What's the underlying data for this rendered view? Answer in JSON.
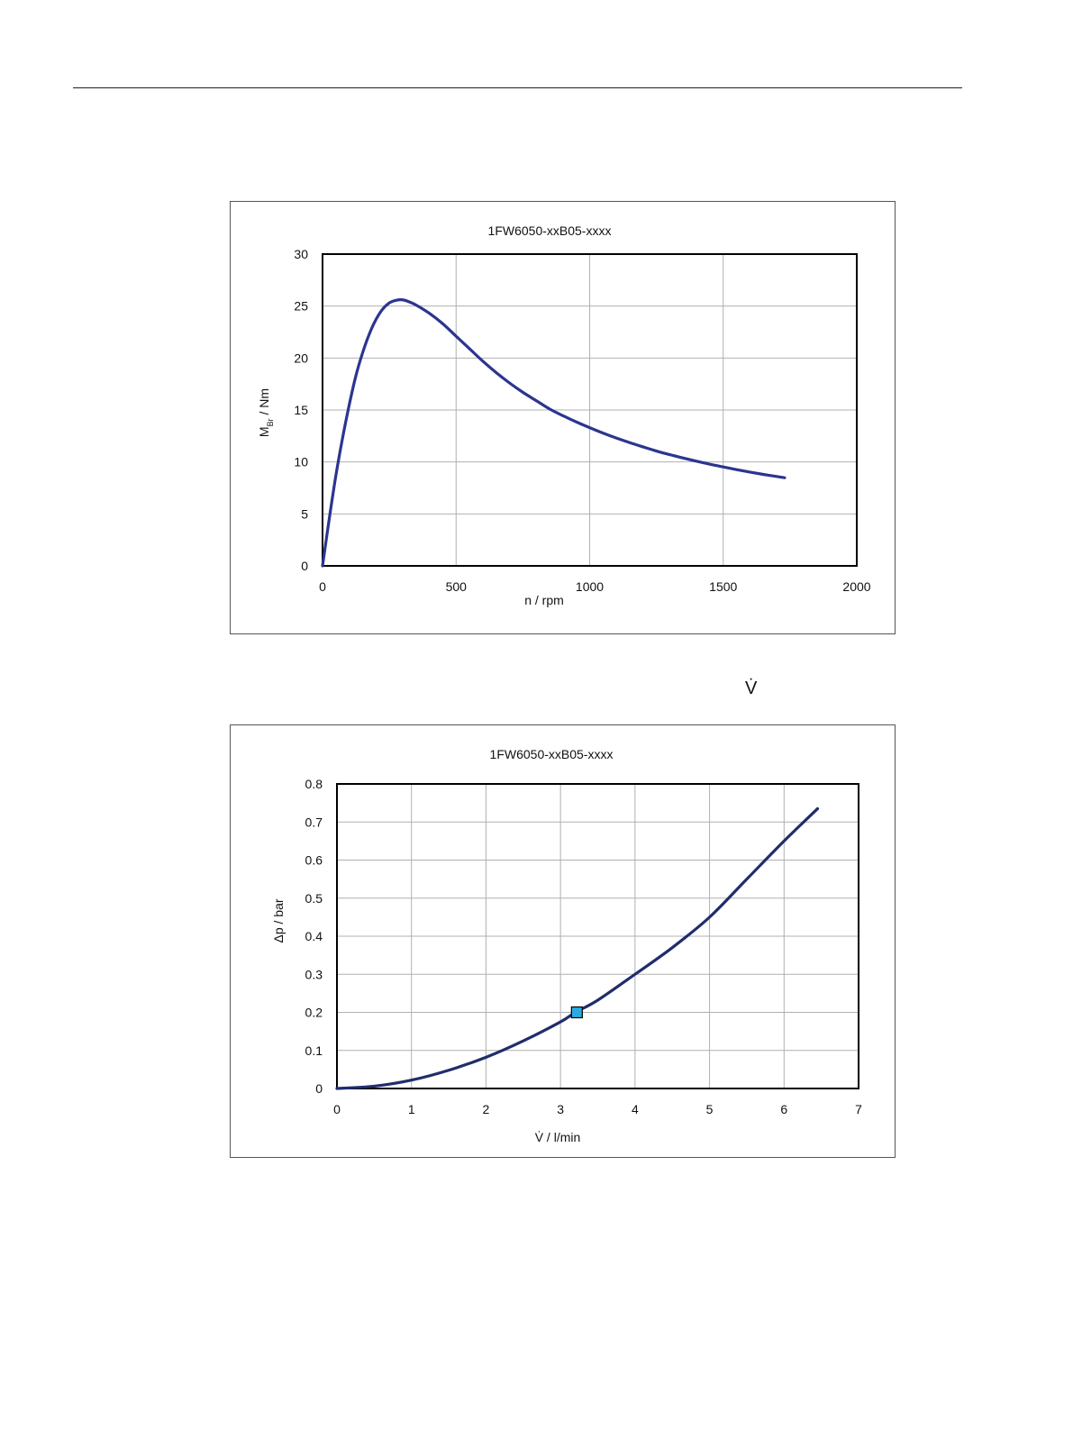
{
  "page": {
    "vdot_symbol": "V̇"
  },
  "charts": {
    "braking_torque": {
      "title": "1FW6050-xxB05-xxxx",
      "ylabel_main": "M",
      "ylabel_sub": "Br",
      "ylabel_tail": " / Nm",
      "xlabel": "n / rpm"
    },
    "pressure_drop": {
      "title": "1FW6050-xxB05-xxxx",
      "ylabel": "Δp / bar",
      "xlabel": "V̇ / l/min"
    }
  },
  "colors": {
    "curve": "#2b3590",
    "curve2": "#1f2d6b",
    "grid": "#b0b0b0",
    "marker": "#29abe2"
  },
  "chart_data": [
    {
      "type": "line",
      "title": "1FW6050-xxB05-xxxx",
      "xlabel": "n / rpm",
      "ylabel": "MBr / Nm",
      "xlim": [
        0,
        2000
      ],
      "ylim": [
        0,
        30
      ],
      "xticks": [
        0,
        500,
        1000,
        1500,
        2000
      ],
      "yticks": [
        0,
        5,
        10,
        15,
        20,
        25,
        30
      ],
      "grid": true,
      "series": [
        {
          "x": [
            0,
            25,
            50,
            75,
            100,
            125,
            150,
            175,
            200,
            225,
            250,
            275,
            300,
            325,
            350,
            400,
            450,
            500,
            550,
            600,
            650,
            700,
            750,
            800,
            850,
            900,
            950,
            1000,
            1050,
            1100,
            1150,
            1200,
            1250,
            1300,
            1350,
            1400,
            1450,
            1500,
            1550,
            1600,
            1650,
            1700,
            1730
          ],
          "y": [
            0,
            4.5,
            8.7,
            12.3,
            15.5,
            18.3,
            20.5,
            22.3,
            23.7,
            24.7,
            25.3,
            25.55,
            25.6,
            25.4,
            25.1,
            24.3,
            23.3,
            22.1,
            20.9,
            19.7,
            18.6,
            17.6,
            16.7,
            15.9,
            15.1,
            14.45,
            13.85,
            13.3,
            12.78,
            12.3,
            11.86,
            11.45,
            11.05,
            10.7,
            10.38,
            10.07,
            9.78,
            9.52,
            9.26,
            9.02,
            8.8,
            8.6,
            8.48
          ]
        }
      ]
    },
    {
      "type": "line",
      "title": "1FW6050-xxB05-xxxx",
      "xlabel": "V̇ / l/min",
      "ylabel": "Δp / bar",
      "xlim": [
        0,
        7
      ],
      "ylim": [
        0,
        0.8
      ],
      "xticks": [
        0,
        1,
        2,
        3,
        4,
        5,
        6,
        7
      ],
      "yticks": [
        0,
        0.1,
        0.2,
        0.3,
        0.4,
        0.5,
        0.6,
        0.7,
        0.8
      ],
      "grid": true,
      "series": [
        {
          "x": [
            0,
            0.5,
            1,
            1.5,
            2,
            2.5,
            3,
            3.2,
            3.5,
            4,
            4.5,
            5,
            5.5,
            6,
            6.45
          ],
          "y": [
            0,
            0.006,
            0.022,
            0.048,
            0.082,
            0.125,
            0.175,
            0.2,
            0.232,
            0.3,
            0.37,
            0.45,
            0.55,
            0.65,
            0.735
          ]
        }
      ],
      "marker": {
        "x": 3.22,
        "y": 0.2
      }
    }
  ]
}
